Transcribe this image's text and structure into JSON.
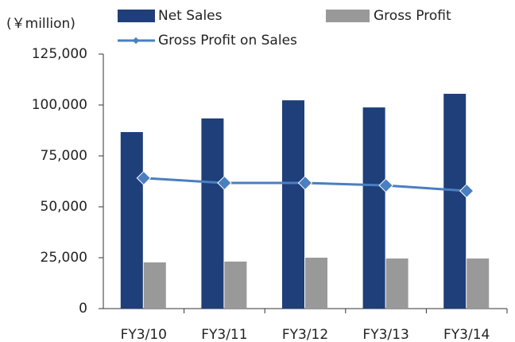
{
  "chart_data": {
    "type": "bar",
    "y_label": "(￥million)",
    "categories": [
      "FY3/10",
      "FY3/11",
      "FY3/12",
      "FY3/13",
      "FY3/14"
    ],
    "series": [
      {
        "name": "Net Sales",
        "color": "#1f3f7a",
        "type": "bar",
        "values": [
          86700,
          93400,
          102300,
          98800,
          105500
        ]
      },
      {
        "name": "Gross Profit",
        "color": "#999999",
        "type": "bar",
        "values": [
          22700,
          23100,
          25000,
          24600,
          24600
        ]
      },
      {
        "name": "Gross Profit on Sales",
        "color": "#4a7fc1",
        "type": "line",
        "values": [
          64100,
          61700,
          61700,
          60500,
          57800
        ]
      }
    ],
    "ylim": [
      0,
      125000
    ],
    "yticks": [
      0,
      {
        "value": 25000,
        "label": "25,000"
      },
      {
        "value": 50000,
        "label": "50,000"
      },
      {
        "value": 75000,
        "label": "75,000"
      },
      {
        "value": 100000,
        "label": "100,000"
      },
      {
        "value": 125000,
        "label": "125,000"
      }
    ],
    "grid": false
  }
}
